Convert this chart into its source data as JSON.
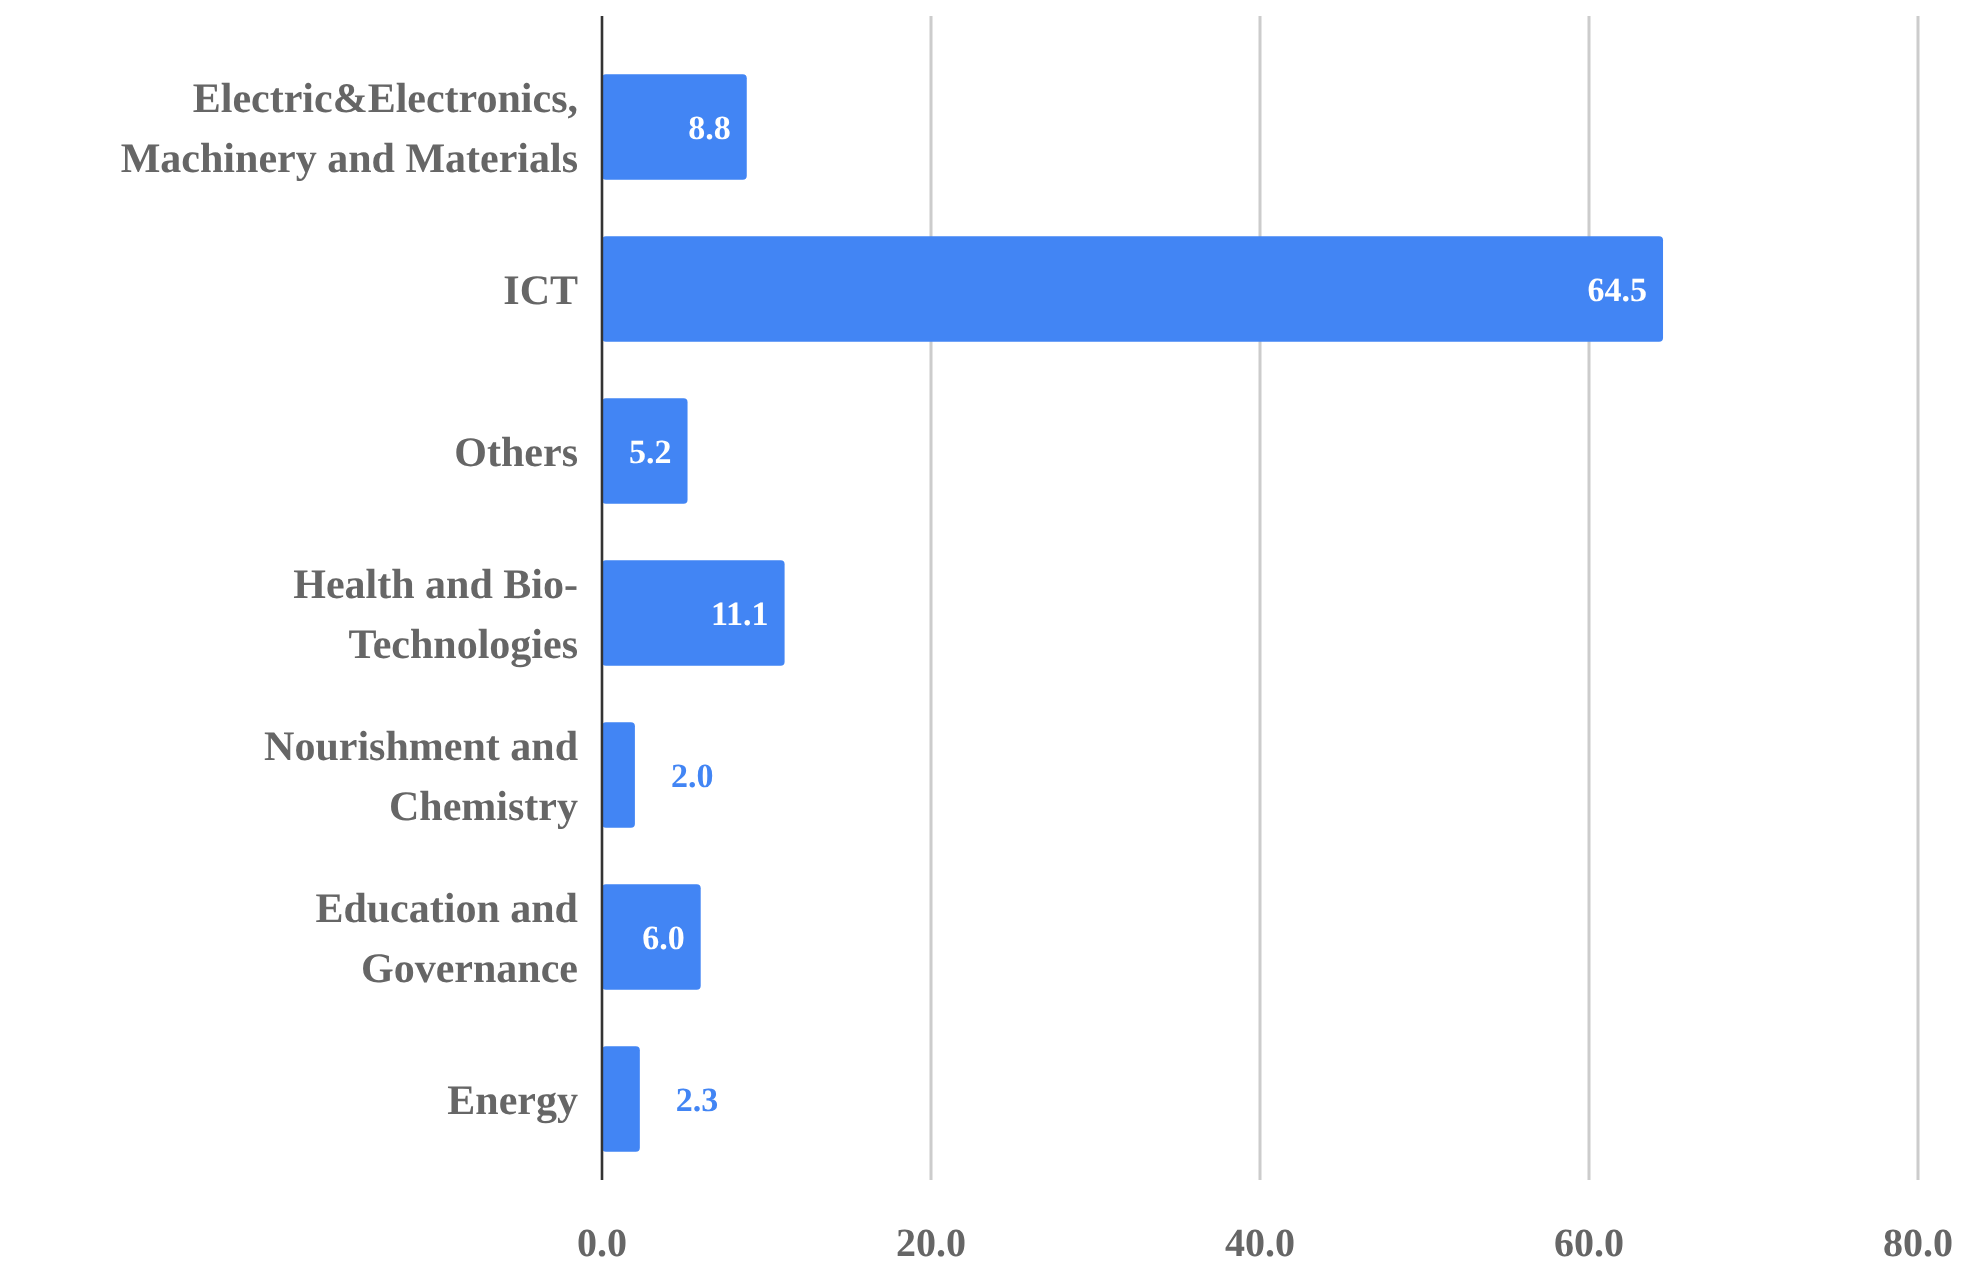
{
  "chart_data": {
    "type": "bar",
    "orientation": "horizontal",
    "categories": [
      "Electric&Electronics,\nMachinery and Materials",
      "ICT",
      "Others",
      "Health and Bio-\nTechnologies",
      "Nourishment and\nChemistry",
      "Education and\nGovernance",
      "Energy"
    ],
    "values": [
      8.8,
      64.5,
      5.2,
      11.1,
      2.0,
      6.0,
      2.3
    ],
    "value_labels": [
      "8.8",
      "64.5",
      "5.2",
      "11.1",
      "2.0",
      "6.0",
      "2.3"
    ],
    "color": "#4285f4",
    "xlim": [
      0,
      80
    ],
    "xticks": [
      {
        "value": 0,
        "label": "0.0"
      },
      {
        "value": 20,
        "label": "20.0"
      },
      {
        "value": 40,
        "label": "40.0"
      },
      {
        "value": 60,
        "label": "60.0"
      },
      {
        "value": 80,
        "label": "80.0"
      }
    ],
    "grid": "x"
  }
}
